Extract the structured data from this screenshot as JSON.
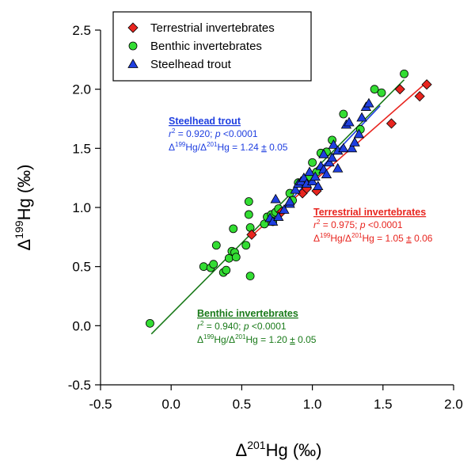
{
  "chart_data": {
    "type": "scatter",
    "xlabel": "Δ201Hg (‰)",
    "xlabel_parts": {
      "base": "Δ",
      "sup": "201",
      "rest": "Hg (‰)"
    },
    "ylabel": "Δ199Hg (‰)",
    "ylabel_parts": {
      "base": "Δ",
      "sup": "199",
      "rest": "Hg (‰)"
    },
    "xlim": [
      -0.5,
      2.0
    ],
    "ylim": [
      -0.5,
      2.5
    ],
    "x_ticks": [
      "-0.5",
      "0.0",
      "0.5",
      "1.0",
      "1.5",
      "2.0"
    ],
    "y_ticks": [
      "-0.5",
      "0.0",
      "0.5",
      "1.0",
      "1.5",
      "2.0",
      "2.5"
    ],
    "grid": false,
    "legend_position": "top-left",
    "series": [
      {
        "name": "Terrestrial invertebrates",
        "marker": "diamond",
        "color": "#e8251f",
        "line_color": "#e8251f",
        "fit": {
          "x": [
            0.56,
            1.82
          ],
          "y": [
            0.75,
            2.07
          ]
        },
        "points": [
          [
            0.57,
            0.77
          ],
          [
            0.78,
            0.96
          ],
          [
            0.93,
            1.12
          ],
          [
            0.96,
            1.16
          ],
          [
            1.03,
            1.14
          ],
          [
            1.56,
            1.71
          ],
          [
            1.62,
            2.0
          ],
          [
            1.76,
            1.94
          ],
          [
            1.81,
            2.04
          ]
        ]
      },
      {
        "name": "Benthic invertebrates",
        "marker": "circle",
        "color": "#33dd33",
        "line_color": "#1a7a1a",
        "fit": {
          "x": [
            -0.14,
            1.65
          ],
          "y": [
            -0.07,
            2.08
          ]
        },
        "points": [
          [
            -0.15,
            0.02
          ],
          [
            0.23,
            0.5
          ],
          [
            0.28,
            0.49
          ],
          [
            0.3,
            0.52
          ],
          [
            0.32,
            0.68
          ],
          [
            0.37,
            0.45
          ],
          [
            0.39,
            0.47
          ],
          [
            0.41,
            0.57
          ],
          [
            0.43,
            0.63
          ],
          [
            0.44,
            0.82
          ],
          [
            0.45,
            0.62
          ],
          [
            0.46,
            0.58
          ],
          [
            0.53,
            0.68
          ],
          [
            0.55,
            1.05
          ],
          [
            0.55,
            0.94
          ],
          [
            0.56,
            0.42
          ],
          [
            0.56,
            0.83
          ],
          [
            0.66,
            0.86
          ],
          [
            0.68,
            0.92
          ],
          [
            0.71,
            0.94
          ],
          [
            0.72,
            0.88
          ],
          [
            0.74,
            0.96
          ],
          [
            0.76,
            0.99
          ],
          [
            0.84,
            1.12
          ],
          [
            0.86,
            1.06
          ],
          [
            0.9,
            1.21
          ],
          [
            0.95,
            1.18
          ],
          [
            0.98,
            1.26
          ],
          [
            1.0,
            1.38
          ],
          [
            1.03,
            1.3
          ],
          [
            1.06,
            1.46
          ],
          [
            1.1,
            1.47
          ],
          [
            1.14,
            1.57
          ],
          [
            1.22,
            1.79
          ],
          [
            1.34,
            1.66
          ],
          [
            1.44,
            2.0
          ],
          [
            1.49,
            1.97
          ],
          [
            1.65,
            2.13
          ]
        ]
      },
      {
        "name": "Steelhead trout",
        "marker": "triangle",
        "color": "#1f3fe0",
        "line_color": "#1f3fe0",
        "fit": {
          "x": [
            0.7,
            1.48
          ],
          "y": [
            0.88,
            1.86
          ]
        },
        "points": [
          [
            0.7,
            0.91
          ],
          [
            0.72,
            0.88
          ],
          [
            0.74,
            1.07
          ],
          [
            0.76,
            0.92
          ],
          [
            0.8,
            0.98
          ],
          [
            0.84,
            1.03
          ],
          [
            0.88,
            1.15
          ],
          [
            0.9,
            1.2
          ],
          [
            0.92,
            1.22
          ],
          [
            0.94,
            1.25
          ],
          [
            0.96,
            1.2
          ],
          [
            0.98,
            1.3
          ],
          [
            1.0,
            1.22
          ],
          [
            1.02,
            1.26
          ],
          [
            1.04,
            1.18
          ],
          [
            1.06,
            1.35
          ],
          [
            1.08,
            1.32
          ],
          [
            1.1,
            1.28
          ],
          [
            1.12,
            1.38
          ],
          [
            1.14,
            1.42
          ],
          [
            1.15,
            1.53
          ],
          [
            1.18,
            1.48
          ],
          [
            1.22,
            1.5
          ],
          [
            1.24,
            1.7
          ],
          [
            1.26,
            1.72
          ],
          [
            1.28,
            1.5
          ],
          [
            1.3,
            1.55
          ],
          [
            1.33,
            1.62
          ],
          [
            1.35,
            1.76
          ],
          [
            1.38,
            1.85
          ],
          [
            1.4,
            1.88
          ],
          [
            0.84,
            1.05
          ],
          [
            1.08,
            1.45
          ],
          [
            1.18,
            1.33
          ]
        ]
      }
    ],
    "annotations": [
      {
        "series": "Steelhead trout",
        "color": "#1f3fe0",
        "title": "Steelhead trout",
        "line1": "r2 = 0.920; p <0.0001",
        "line2": "Δ199Hg/Δ201Hg = 1.24 ± 0.05",
        "r2": "0.920",
        "p": "<0.0001",
        "slope": "1.24",
        "err": "0.05"
      },
      {
        "series": "Terrestrial invertebrates",
        "color": "#e8251f",
        "title": "Terrestrial invertebrates",
        "line1": "r2 = 0.975; p <0.0001",
        "line2": "Δ199Hg/Δ201Hg = 1.05 ± 0.06",
        "r2": "0.975",
        "p": "<0.0001",
        "slope": "1.05",
        "err": "0.06"
      },
      {
        "series": "Benthic invertebrates",
        "color": "#1a7a1a",
        "title": "Benthic invertebrates",
        "line1": "r2 = 0.940; p <0.0001",
        "line2": "Δ199Hg/Δ201Hg = 1.20 ± 0.05",
        "r2": "0.940",
        "p": "<0.0001",
        "slope": "1.20",
        "err": "0.05"
      }
    ]
  }
}
